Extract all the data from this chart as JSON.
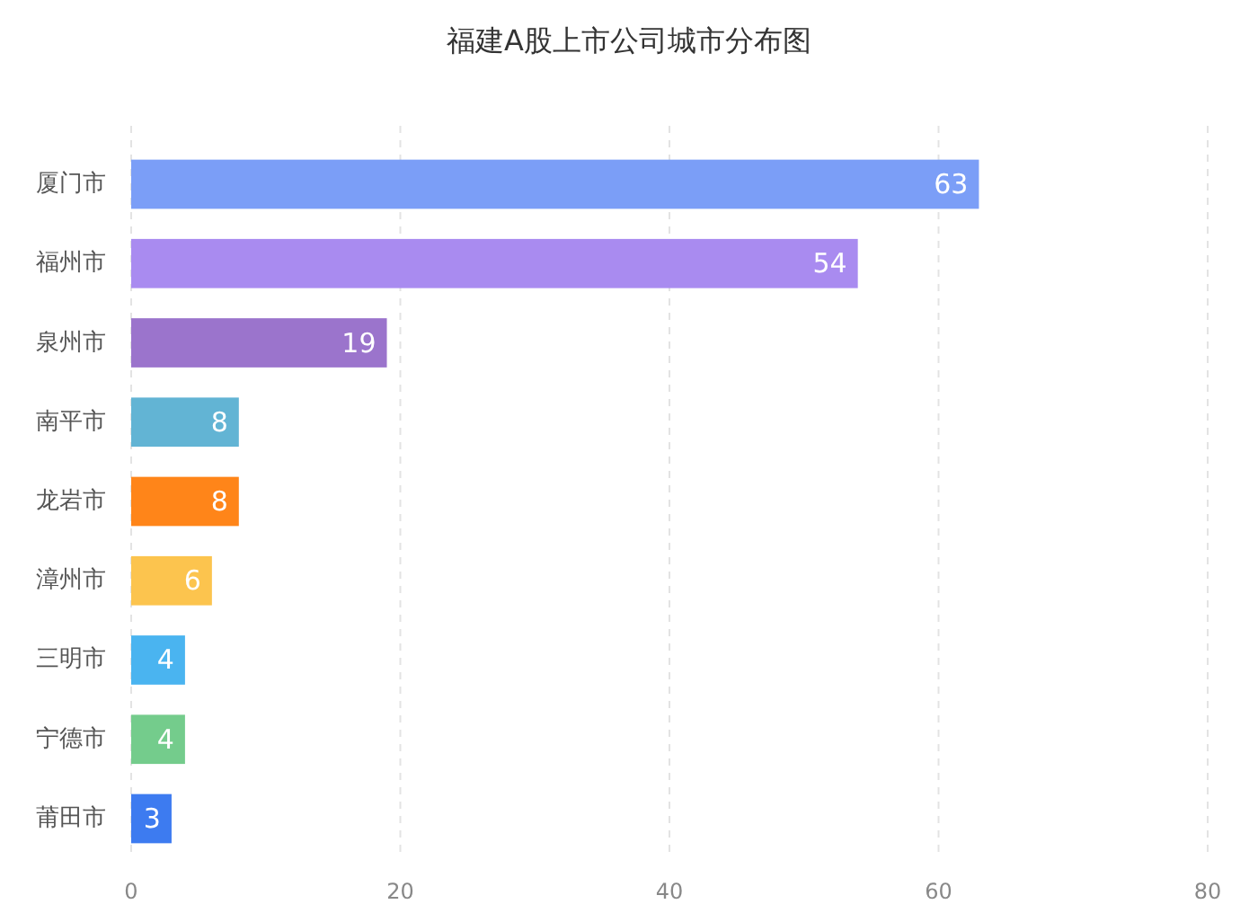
{
  "chart_data": {
    "type": "bar",
    "orientation": "horizontal",
    "title": "福建A股上市公司城市分布图",
    "categories": [
      "厦门市",
      "福州市",
      "泉州市",
      "南平市",
      "龙岩市",
      "漳州市",
      "三明市",
      "宁德市",
      "莆田市"
    ],
    "values": [
      63,
      54,
      19,
      8,
      8,
      6,
      4,
      4,
      3
    ],
    "colors": [
      "#7b9ef7",
      "#a98bf0",
      "#9b74cc",
      "#62b4d4",
      "#ff8519",
      "#fcc44e",
      "#4ab4f0",
      "#74cc8c",
      "#3d7bf0"
    ],
    "xlim": [
      0,
      80
    ],
    "xticks": [
      0,
      20,
      40,
      60,
      80
    ],
    "grid": "x",
    "data_labels": true
  }
}
